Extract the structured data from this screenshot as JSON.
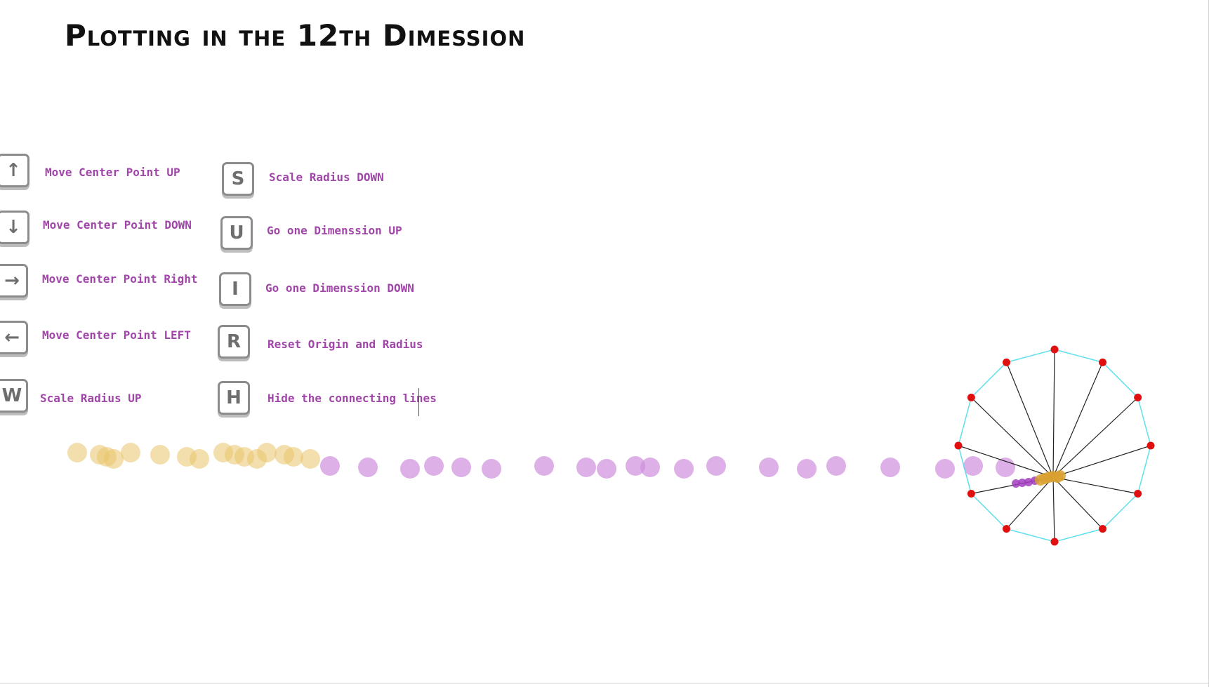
{
  "title": "Plotting in the 12th Dimession",
  "controls": [
    {
      "key": "↑",
      "icon": "arrow-up-icon",
      "label": "Move Center Point UP"
    },
    {
      "key": "↓",
      "icon": "arrow-down-icon",
      "label": "Move Center Point DOWN"
    },
    {
      "key": "→",
      "icon": "arrow-right-icon",
      "label": "Move Center Point Right"
    },
    {
      "key": "←",
      "icon": "arrow-left-icon",
      "label": "Move Center Point LEFT"
    },
    {
      "key": "W",
      "icon": "w-key-icon",
      "label": "Scale Radius UP"
    },
    {
      "key": "S",
      "icon": "s-key-icon",
      "label": "Scale Radius DOWN"
    },
    {
      "key": "U",
      "icon": "u-key-icon",
      "label": "Go one Dimenssion UP"
    },
    {
      "key": "I",
      "icon": "i-key-icon",
      "label": "Go one Dimenssion DOWN"
    },
    {
      "key": "R",
      "icon": "r-key-icon",
      "label": "Reset Origin and Radius"
    },
    {
      "key": "H",
      "icon": "h-key-icon",
      "label": "Hide the connecting lines"
    }
  ],
  "visualization": {
    "dimensions": 12,
    "colors": {
      "polygon_edge": "#5fe0ec",
      "spoke": "#222222",
      "vertex": "#e01010",
      "trail_purple": "#cf8fdd",
      "trail_gold": "#e9c56a",
      "point_purple": "#a23cc0",
      "point_gold": "#d9a12f",
      "label_text": "#a046a8"
    }
  }
}
